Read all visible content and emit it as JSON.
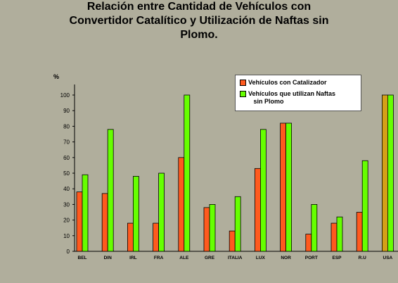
{
  "chart_data": {
    "type": "bar",
    "title_lines": [
      "Relación entre Cantidad de Vehículos con",
      "Convertidor Catalítico y Utilización de Naftas sin",
      "Plomo."
    ],
    "ylabel": "%",
    "ylim": [
      0,
      100
    ],
    "yticks": [
      0,
      10,
      20,
      30,
      40,
      50,
      60,
      70,
      80,
      90,
      100
    ],
    "categories": [
      "BEL",
      "DIN",
      "IRL",
      "FRA",
      "ALE",
      "GRE",
      "ITALIA",
      "LUX",
      "NOR",
      "PORT",
      "ESP",
      "R.U",
      "USA"
    ],
    "series": [
      {
        "name": "Vehículos con Catalizador",
        "color": "#ff5a1e",
        "values": [
          38,
          37,
          18,
          18,
          60,
          28,
          13,
          53,
          82,
          11,
          18,
          25,
          100
        ]
      },
      {
        "name": "Vehículos que utilizan Naftas sin Plomo",
        "color": "#66ff00",
        "values": [
          49,
          78,
          48,
          50,
          100,
          30,
          35,
          78,
          82,
          30,
          22,
          58,
          100
        ]
      }
    ],
    "highlight": {
      "category": "USA",
      "series": "Vehículos con Catalizador",
      "color": "#d4a017"
    },
    "legend_position": "top-right",
    "grid": false
  },
  "legend": {
    "item1": "Vehículos con Catalizador",
    "item2": "Vehículos que utilizan Naftas\n   sin Plomo"
  }
}
